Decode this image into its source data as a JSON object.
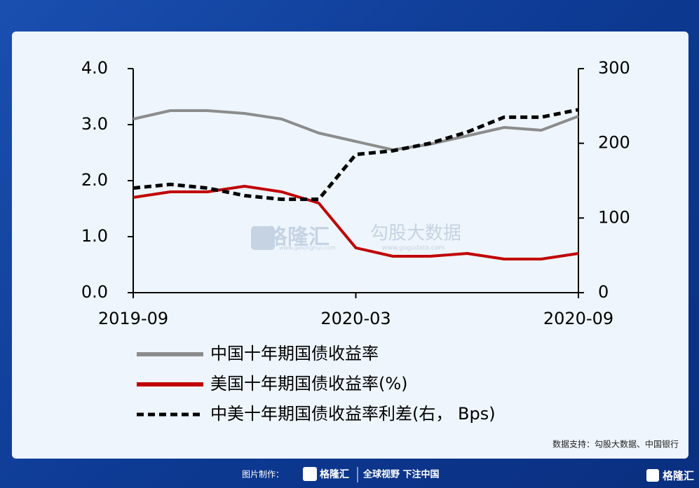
{
  "chart_data": {
    "type": "line",
    "x": [
      "2019-09",
      null,
      null,
      null,
      null,
      null,
      "2020-03",
      null,
      null,
      null,
      null,
      null,
      "2020-09"
    ],
    "series": [
      {
        "name": "中国十年期国债收益率",
        "color": "#8c8c8c",
        "line_style": "solid",
        "values": [
          3.1,
          3.25,
          3.25,
          3.2,
          3.1,
          2.85,
          2.7,
          2.55,
          2.65,
          2.8,
          2.95,
          2.9,
          3.15
        ]
      },
      {
        "name": "美国十年期国债收益率(%)",
        "color": "#c00000",
        "line_style": "solid",
        "values": [
          1.7,
          1.8,
          1.8,
          1.9,
          1.8,
          1.6,
          0.8,
          0.65,
          0.65,
          0.7,
          0.6,
          0.6,
          0.7
        ]
      },
      {
        "name": "中美十年期国债收益率利差(右， Bps)",
        "color": "#000000",
        "line_style": "dashed",
        "axis": "y2",
        "values": [
          140,
          145,
          140,
          130,
          125,
          125,
          185,
          190,
          200,
          215,
          235,
          235,
          245
        ]
      }
    ],
    "ylim": [
      0,
      4
    ],
    "yticks": [
      {
        "value": 0,
        "label": "0.0"
      },
      {
        "value": 1,
        "label": "1.0"
      },
      {
        "value": 2,
        "label": "2.0"
      },
      {
        "value": 3,
        "label": "3.0"
      },
      {
        "value": 4,
        "label": "4.0"
      }
    ],
    "y2lim": [
      0,
      300
    ],
    "y2ticks": [
      0,
      100,
      200,
      300
    ],
    "grid": false
  },
  "source": "数据支持：勾股大数据、中国银行",
  "watermarks": [
    "格隆汇",
    "www.gelonghui.com",
    "勾股大数据",
    "www.gogudata.com"
  ],
  "footer": {
    "made_by": "图片制作：",
    "brand": "格隆汇",
    "slogan": "全球视野 下注中国",
    "corner_brand": "格隆汇"
  }
}
